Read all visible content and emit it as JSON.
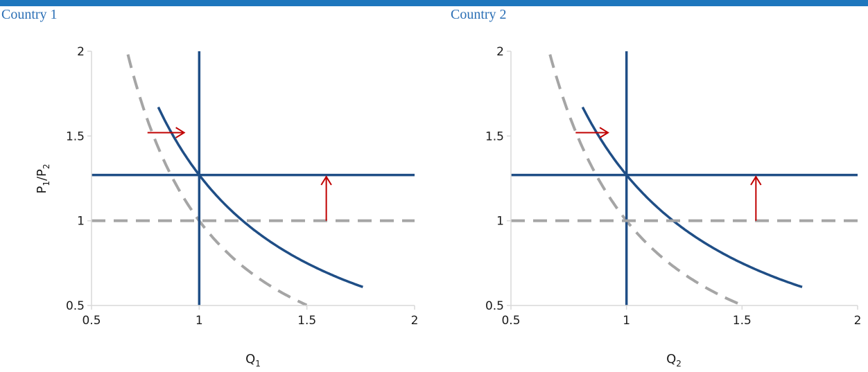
{
  "colors": {
    "header_bar": "#1e76bd",
    "panel_title": "#2b6fb5",
    "new_curve": "#1f4e86",
    "old_curve": "#a5a5a5",
    "shift_arrow": "#c00000",
    "axis": "#d9d9d9"
  },
  "chart_data": [
    {
      "type": "line",
      "title": "Country 1",
      "xlabel": {
        "base": "Q",
        "sub": "1"
      },
      "ylabel": {
        "p": "P",
        "s1": "1",
        "slash": "/",
        "s2": "2"
      },
      "xlim": [
        0.5,
        2
      ],
      "ylim": [
        0.5,
        2
      ],
      "xticks": [
        "0.5",
        "1",
        "1.5",
        "2"
      ],
      "yticks": [
        "0.5",
        "1",
        "1.5",
        "2"
      ],
      "grid": false,
      "series": [
        {
          "style": "solid",
          "color": "#1f4e86",
          "kind": "curve",
          "formula": "y = 1.27 / x^1.3",
          "x_range": [
            0.81,
            1.76
          ]
        },
        {
          "style": "dashed",
          "color": "#a5a5a5",
          "kind": "curve",
          "formula": "y = 1 / x^1.7",
          "x_range": [
            0.66,
            1.72
          ]
        },
        {
          "style": "solid",
          "color": "#1f4e86",
          "kind": "vertical",
          "x": 1.0
        },
        {
          "style": "solid",
          "color": "#1f4e86",
          "kind": "horizontal",
          "y": 1.27
        },
        {
          "style": "dashed",
          "color": "#a5a5a5",
          "kind": "horizontal",
          "y": 1.0
        }
      ],
      "arrows": [
        {
          "from": [
            0.76,
            1.52
          ],
          "to": [
            0.93,
            1.52
          ],
          "color": "#c00000"
        },
        {
          "from": [
            1.59,
            1.0
          ],
          "to": [
            1.59,
            1.26
          ],
          "color": "#c00000"
        }
      ]
    },
    {
      "type": "line",
      "title": "Country 2",
      "xlabel": {
        "base": "Q",
        "sub": "2"
      },
      "ylabel": null,
      "xlim": [
        0.5,
        2
      ],
      "ylim": [
        0.5,
        2
      ],
      "xticks": [
        "0.5",
        "1",
        "1.5",
        "2"
      ],
      "yticks": [
        "0.5",
        "1",
        "1.5",
        "2"
      ],
      "grid": false,
      "series": [
        {
          "style": "solid",
          "color": "#1f4e86",
          "kind": "curve",
          "formula": "y = 1.27 / x^1.3",
          "x_range": [
            0.81,
            1.76
          ]
        },
        {
          "style": "dashed",
          "color": "#a5a5a5",
          "kind": "curve",
          "formula": "y = 1 / x^1.7",
          "x_range": [
            0.66,
            1.72
          ]
        },
        {
          "style": "solid",
          "color": "#1f4e86",
          "kind": "vertical",
          "x": 1.0
        },
        {
          "style": "solid",
          "color": "#1f4e86",
          "kind": "horizontal",
          "y": 1.27
        },
        {
          "style": "dashed",
          "color": "#a5a5a5",
          "kind": "horizontal",
          "y": 1.0
        }
      ],
      "arrows": [
        {
          "from": [
            0.78,
            1.52
          ],
          "to": [
            0.92,
            1.52
          ],
          "color": "#c00000"
        },
        {
          "from": [
            1.56,
            1.0
          ],
          "to": [
            1.56,
            1.26
          ],
          "color": "#c00000"
        }
      ]
    }
  ]
}
